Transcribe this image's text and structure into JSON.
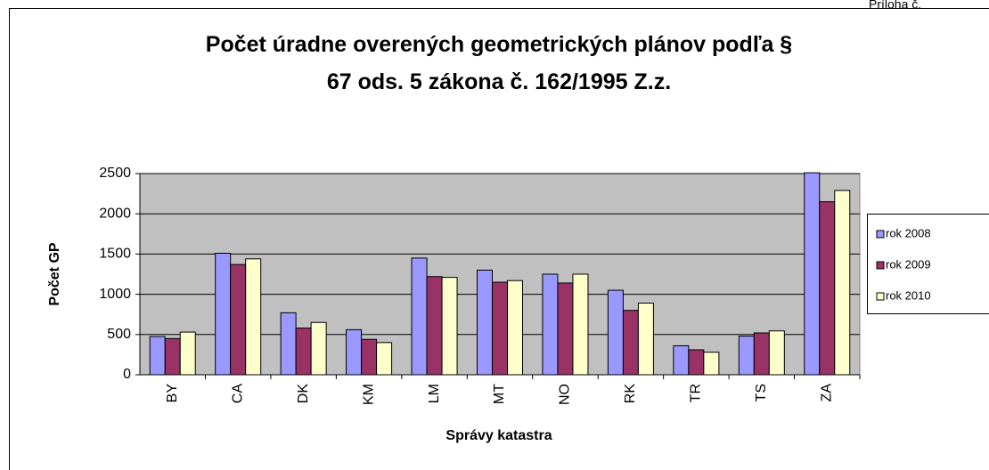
{
  "page_note": "Príloha č.",
  "chart_data": {
    "type": "bar",
    "title": "Počet úradne overených geometrických plánov podľa § 67 ods. 5 zákona č. 162/1995 Z.z.",
    "title_lines": [
      "Počet úradne overených geometrických plánov podľa §",
      "67 ods. 5 zákona č. 162/1995 Z.z."
    ],
    "x_label": "Správy katastra",
    "y_label": "Počet GP",
    "categories": [
      "BY",
      "CA",
      "DK",
      "KM",
      "LM",
      "MT",
      "NO",
      "RK",
      "TR",
      "TS",
      "ZA"
    ],
    "series": [
      {
        "name": "rok 2008",
        "color": "#9999ff",
        "values": [
          475,
          1510,
          770,
          560,
          1450,
          1300,
          1250,
          1050,
          360,
          480,
          2510
        ]
      },
      {
        "name": "rok 2009",
        "color": "#993366",
        "values": [
          450,
          1370,
          580,
          440,
          1220,
          1150,
          1140,
          800,
          310,
          520,
          2150
        ]
      },
      {
        "name": "rok 2010",
        "color": "#ffffcc",
        "values": [
          530,
          1440,
          650,
          400,
          1210,
          1170,
          1250,
          890,
          280,
          545,
          2290
        ]
      }
    ],
    "ylim": [
      0,
      2500
    ],
    "yticks": [
      0,
      500,
      1000,
      1500,
      2000,
      2500
    ],
    "grid": true,
    "legend": "right"
  }
}
